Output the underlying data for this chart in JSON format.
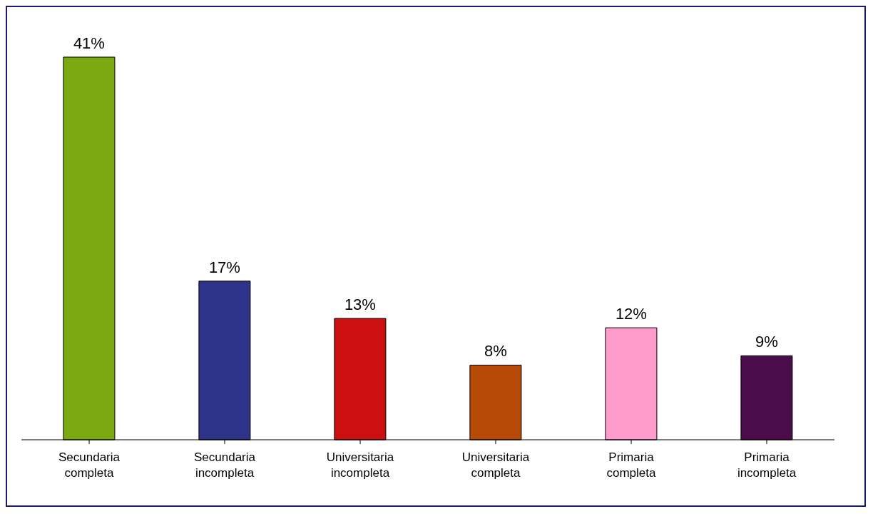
{
  "chart_data": {
    "type": "bar",
    "categories": [
      "Secundaria completa",
      "Secundaria incompleta",
      "Universitaria incompleta",
      "Universitaria completa",
      "Primaria completa",
      "Primaria incompleta"
    ],
    "values": [
      41,
      17,
      13,
      8,
      12,
      9
    ],
    "colors": [
      "#7aaa10",
      "#2c3388",
      "#cc1010",
      "#b84a08",
      "#ff9ccc",
      "#4a0c4a"
    ],
    "value_labels": [
      "41%",
      "17%",
      "13%",
      "8%",
      "12%",
      "9%"
    ],
    "grid": false,
    "legend": false
  }
}
